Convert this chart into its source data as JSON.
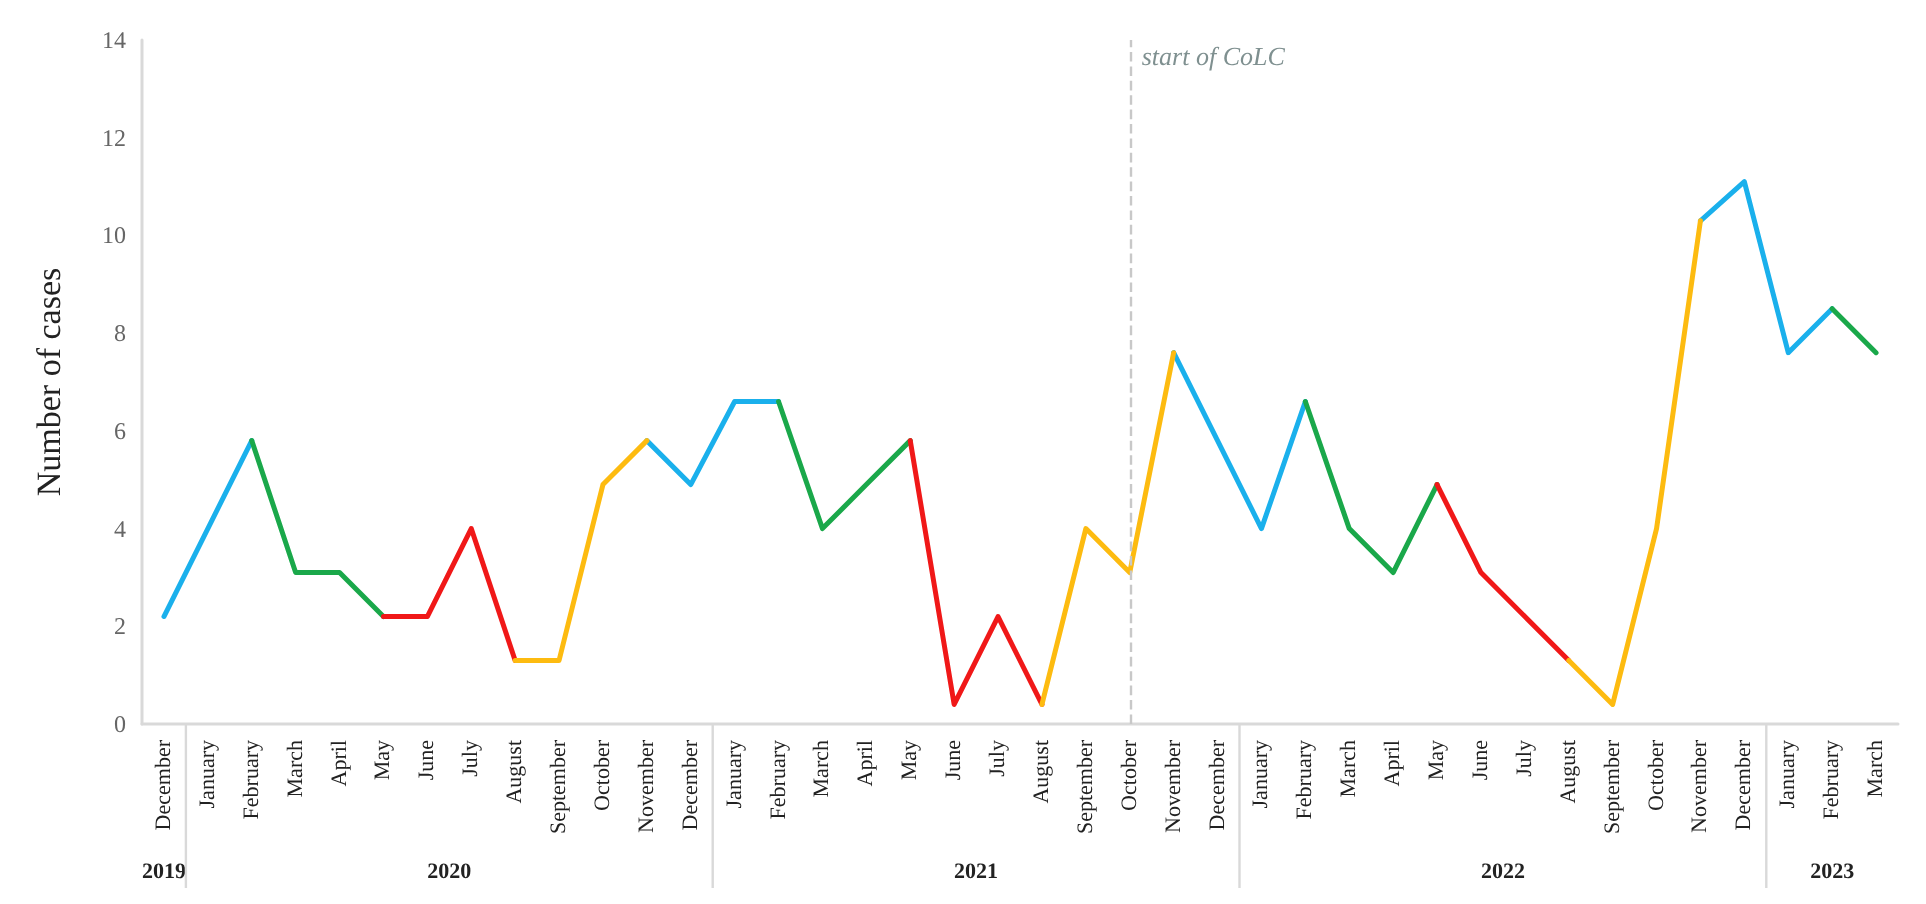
{
  "chart_data": {
    "type": "line",
    "ylabel": "Number of cases",
    "categories": [
      "December",
      "January",
      "February",
      "March",
      "April",
      "May",
      "June",
      "July",
      "August",
      "September",
      "October",
      "November",
      "December",
      "January",
      "February",
      "March",
      "April",
      "May",
      "June",
      "July",
      "August",
      "September",
      "October",
      "November",
      "December",
      "January",
      "February",
      "March",
      "April",
      "May",
      "June",
      "July",
      "August",
      "September",
      "October",
      "November",
      "December",
      "January",
      "February",
      "March"
    ],
    "series": [
      {
        "color": "#1ab0ec",
        "values": [
          2.2,
          4,
          5.8,
          null,
          null,
          null,
          null,
          null,
          null,
          null,
          null,
          5.8,
          4.9,
          6.6,
          6.6,
          null,
          null,
          null,
          null,
          null,
          null,
          null,
          null,
          7.6,
          5.8,
          4,
          6.6,
          null,
          null,
          null,
          null,
          null,
          null,
          null,
          null,
          10.3,
          11.1,
          7.6,
          8.5,
          null
        ]
      },
      {
        "color": "#1aa84a",
        "values": [
          null,
          null,
          5.8,
          3.1,
          3.1,
          2.2,
          null,
          null,
          null,
          null,
          null,
          null,
          null,
          null,
          6.6,
          4,
          4.9,
          5.8,
          null,
          null,
          null,
          null,
          null,
          null,
          null,
          null,
          6.6,
          4,
          3.1,
          4.9,
          null,
          null,
          null,
          null,
          null,
          null,
          null,
          null,
          8.5,
          7.6
        ]
      },
      {
        "color": "#f01818",
        "values": [
          null,
          null,
          null,
          null,
          null,
          2.2,
          2.2,
          4,
          1.3,
          null,
          null,
          null,
          null,
          null,
          null,
          null,
          null,
          5.8,
          0.4,
          2.2,
          0.4,
          null,
          null,
          null,
          null,
          null,
          null,
          null,
          null,
          4.9,
          3.1,
          2.2,
          1.3,
          null,
          null,
          null,
          null,
          null,
          null,
          null
        ]
      },
      {
        "color": "#fdbb10",
        "values": [
          null,
          null,
          null,
          null,
          null,
          null,
          null,
          null,
          1.3,
          1.3,
          4.9,
          5.8,
          null,
          null,
          null,
          null,
          null,
          null,
          null,
          null,
          0.4,
          4,
          3.1,
          7.6,
          null,
          null,
          null,
          null,
          null,
          null,
          null,
          null,
          1.3,
          0.4,
          4,
          10.3,
          null,
          null,
          null,
          null
        ]
      }
    ],
    "ylim": [
      0,
      14
    ],
    "yticks": [
      0,
      2,
      4,
      6,
      8,
      10,
      12,
      14
    ],
    "annotations": [
      "start of CoLC",
      "2019",
      "2020",
      "2021",
      "2022",
      "2023"
    ],
    "marker": "none",
    "line_style": "solid"
  }
}
